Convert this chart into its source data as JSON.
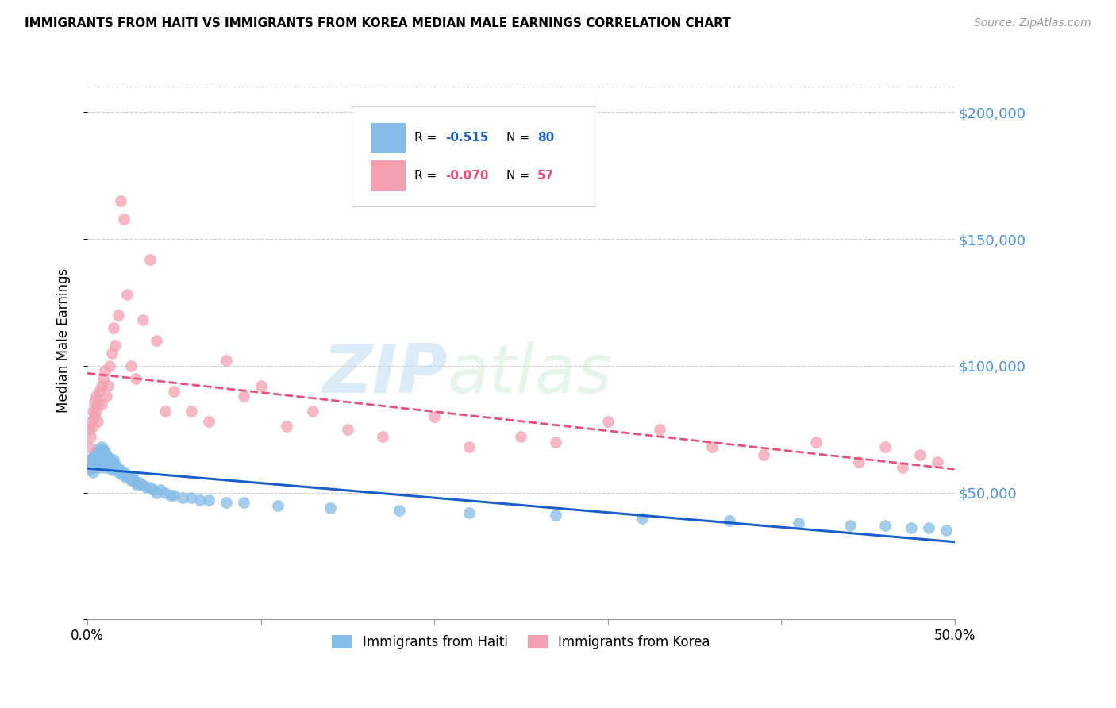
{
  "title": "IMMIGRANTS FROM HAITI VS IMMIGRANTS FROM KOREA MEDIAN MALE EARNINGS CORRELATION CHART",
  "source": "Source: ZipAtlas.com",
  "ylabel": "Median Male Earnings",
  "xlim": [
    0.0,
    0.5
  ],
  "ylim": [
    0,
    220000
  ],
  "yticks": [
    0,
    50000,
    100000,
    150000,
    200000
  ],
  "xticks": [
    0.0,
    0.1,
    0.2,
    0.3,
    0.4,
    0.5
  ],
  "xtick_labels": [
    "0.0%",
    "",
    "",
    "",
    "",
    "50.0%"
  ],
  "haiti_color": "#85bce8",
  "korea_color": "#f4a0b0",
  "haiti_line_color": "#1a5fc8",
  "korea_line_color": "#e8507a",
  "haiti_R": -0.515,
  "haiti_N": 80,
  "korea_R": -0.07,
  "korea_N": 57,
  "background_color": "#ffffff",
  "grid_color": "#cccccc",
  "ytick_right_color": "#4a90d9",
  "haiti_x": [
    0.001,
    0.002,
    0.002,
    0.003,
    0.003,
    0.003,
    0.004,
    0.004,
    0.004,
    0.005,
    0.005,
    0.005,
    0.006,
    0.006,
    0.006,
    0.007,
    0.007,
    0.007,
    0.008,
    0.008,
    0.008,
    0.009,
    0.009,
    0.009,
    0.01,
    0.01,
    0.01,
    0.011,
    0.011,
    0.012,
    0.012,
    0.013,
    0.013,
    0.014,
    0.014,
    0.015,
    0.015,
    0.016,
    0.017,
    0.018,
    0.019,
    0.02,
    0.021,
    0.022,
    0.023,
    0.024,
    0.025,
    0.026,
    0.027,
    0.028,
    0.029,
    0.03,
    0.032,
    0.034,
    0.036,
    0.038,
    0.04,
    0.042,
    0.045,
    0.048,
    0.05,
    0.055,
    0.06,
    0.065,
    0.07,
    0.08,
    0.09,
    0.11,
    0.14,
    0.18,
    0.22,
    0.27,
    0.32,
    0.37,
    0.41,
    0.44,
    0.46,
    0.475,
    0.485,
    0.495
  ],
  "haiti_y": [
    63000,
    61000,
    59000,
    64000,
    62000,
    58000,
    65000,
    63000,
    60000,
    66000,
    64000,
    61000,
    67000,
    65000,
    62000,
    66000,
    64000,
    60000,
    68000,
    65000,
    62000,
    67000,
    64000,
    61000,
    66000,
    63000,
    60000,
    65000,
    62000,
    64000,
    61000,
    63000,
    60000,
    62000,
    59000,
    63000,
    60000,
    61000,
    60000,
    58000,
    59000,
    57000,
    58000,
    56000,
    57000,
    56000,
    55000,
    56000,
    55000,
    54000,
    53000,
    54000,
    53000,
    52000,
    52000,
    51000,
    50000,
    51000,
    50000,
    49000,
    49000,
    48000,
    48000,
    47000,
    47000,
    46000,
    46000,
    45000,
    44000,
    43000,
    42000,
    41000,
    40000,
    39000,
    38000,
    37000,
    37000,
    36000,
    36000,
    35000
  ],
  "korea_x": [
    0.001,
    0.001,
    0.002,
    0.002,
    0.003,
    0.003,
    0.004,
    0.004,
    0.005,
    0.005,
    0.006,
    0.006,
    0.007,
    0.008,
    0.008,
    0.009,
    0.01,
    0.011,
    0.012,
    0.013,
    0.014,
    0.015,
    0.016,
    0.018,
    0.019,
    0.021,
    0.023,
    0.025,
    0.028,
    0.032,
    0.036,
    0.04,
    0.045,
    0.05,
    0.06,
    0.07,
    0.08,
    0.09,
    0.1,
    0.115,
    0.13,
    0.15,
    0.17,
    0.2,
    0.22,
    0.25,
    0.27,
    0.3,
    0.33,
    0.36,
    0.39,
    0.42,
    0.445,
    0.46,
    0.47,
    0.48,
    0.49
  ],
  "korea_y": [
    75000,
    68000,
    78000,
    72000,
    82000,
    76000,
    86000,
    80000,
    88000,
    82000,
    85000,
    78000,
    90000,
    92000,
    85000,
    95000,
    98000,
    88000,
    92000,
    100000,
    105000,
    115000,
    108000,
    120000,
    165000,
    158000,
    128000,
    100000,
    95000,
    118000,
    142000,
    110000,
    82000,
    90000,
    82000,
    78000,
    102000,
    88000,
    92000,
    76000,
    82000,
    75000,
    72000,
    80000,
    68000,
    72000,
    70000,
    78000,
    75000,
    68000,
    65000,
    70000,
    62000,
    68000,
    60000,
    65000,
    62000
  ]
}
